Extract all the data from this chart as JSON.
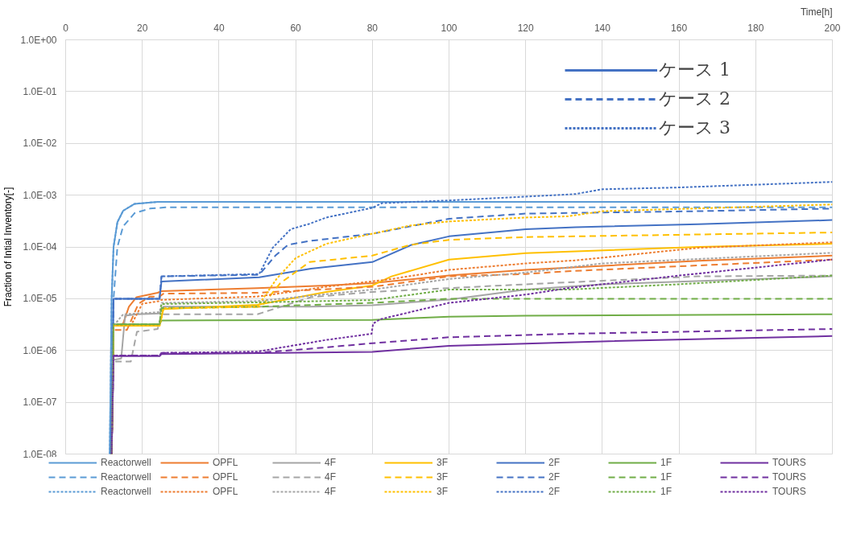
{
  "chart_data": {
    "type": "line",
    "xlabel": "Time[h]",
    "ylabel": "Fraction of Intial Inventory[-]",
    "xlim": [
      0,
      200
    ],
    "xticks": [
      0,
      20,
      40,
      60,
      80,
      100,
      120,
      140,
      160,
      180,
      200
    ],
    "ylim": [
      1e-08,
      1
    ],
    "log": "y",
    "yticks": [
      {
        "value": 1e-08,
        "label": "1.0E-08"
      },
      {
        "value": 1e-07,
        "label": "1.0E-07"
      },
      {
        "value": 1e-06,
        "label": "1.0E-06"
      },
      {
        "value": 1e-05,
        "label": "1.0E-05"
      },
      {
        "value": 0.0001,
        "label": "1.0E-04"
      },
      {
        "value": 0.001,
        "label": "1.0E-03"
      },
      {
        "value": 0.01,
        "label": "1.0E-02"
      },
      {
        "value": 0.1,
        "label": "1.0E-01"
      },
      {
        "value": 1,
        "label": "1.0E+00"
      }
    ],
    "grid": true,
    "legend": "bottom",
    "annotations": [
      "ケース 1",
      "ケース 2",
      "ケース 3"
    ],
    "series": [
      {
        "name": "Reactorwell",
        "color": "#5b9bd5",
        "line_style": "solid",
        "x": [
          11.5,
          12,
          12.5,
          13.5,
          15,
          18,
          24,
          200
        ],
        "values": [
          1e-08,
          1e-05,
          0.0001,
          0.0003,
          0.0005,
          0.00068,
          0.00074,
          0.00074
        ]
      },
      {
        "name": "OPFL",
        "color": "#ed7d31",
        "line_style": "solid",
        "x": [
          12,
          12.5,
          15,
          16.5,
          18.5,
          24,
          25,
          50,
          68,
          80,
          100,
          120,
          165,
          200
        ],
        "values": [
          1e-08,
          3e-06,
          3.3e-06,
          7e-06,
          1.07e-05,
          1.3e-05,
          1.4e-05,
          1.6e-05,
          1.8e-05,
          2e-05,
          2.8e-05,
          3.6e-05,
          5.4e-05,
          6.8e-05
        ]
      },
      {
        "name": "4F",
        "color": "#a5a5a5",
        "line_style": "solid",
        "x": [
          12,
          12.5,
          14.5,
          15.5,
          18.6,
          24.5,
          25.5,
          50,
          64,
          80,
          100,
          120,
          140,
          200
        ],
        "values": [
          1e-08,
          6.6e-07,
          7e-07,
          4.7e-06,
          5e-06,
          5.2e-06,
          7e-06,
          7e-06,
          7e-06,
          7.5e-06,
          9.6e-06,
          1.5e-05,
          1.9e-05,
          2.7e-05
        ]
      },
      {
        "name": "3F",
        "color": "#ffc000",
        "line_style": "solid",
        "x": [
          12,
          12.5,
          24.5,
          25.5,
          50,
          68,
          80,
          85,
          100,
          120,
          165,
          200
        ],
        "values": [
          1e-08,
          3e-06,
          3e-06,
          6.3e-06,
          7.6e-06,
          1.35e-05,
          1.8e-05,
          2.7e-05,
          5.7e-05,
          7.6e-05,
          0.0001,
          0.000115
        ]
      },
      {
        "name": "2F",
        "color": "#4472c4",
        "line_style": "solid",
        "x": [
          11.8,
          12.5,
          24.5,
          25,
          50.5,
          64,
          80,
          90,
          100,
          120,
          133,
          165,
          200
        ],
        "values": [
          1e-08,
          1e-05,
          1e-05,
          2.15e-05,
          2.6e-05,
          3.8e-05,
          5.1e-05,
          0.000108,
          0.00016,
          0.00022,
          0.00024,
          0.000275,
          0.00033
        ]
      },
      {
        "name": "1F",
        "color": "#70ad47",
        "line_style": "solid",
        "x": [
          12,
          12.5,
          24.5,
          25,
          80,
          100,
          120,
          200
        ],
        "values": [
          1e-08,
          3.2e-06,
          3.2e-06,
          3.8e-06,
          3.9e-06,
          4.5e-06,
          4.7e-06,
          5e-06
        ]
      },
      {
        "name": "TOURS",
        "color": "#7030a0",
        "line_style": "solid",
        "x": [
          12,
          12.5,
          24.5,
          25,
          80,
          100,
          120,
          140,
          200
        ],
        "values": [
          1e-08,
          7.8e-07,
          7.8e-07,
          8.5e-07,
          9.4e-07,
          1.23e-06,
          1.35e-06,
          1.5e-06,
          1.9e-06
        ]
      },
      {
        "name": "Reactorwell",
        "color": "#5b9bd5",
        "line_style": "dashed",
        "x": [
          11.7,
          12.5,
          13.5,
          15,
          18,
          22,
          26,
          200
        ],
        "values": [
          1e-08,
          1e-05,
          0.0001,
          0.00025,
          0.00045,
          0.00055,
          0.00058,
          0.00058
        ]
      },
      {
        "name": "OPFL",
        "color": "#ed7d31",
        "line_style": "dashed",
        "x": [
          12,
          12.5,
          16,
          19,
          22,
          24.5,
          25.5,
          50,
          80,
          100,
          120,
          131,
          200
        ],
        "values": [
          1e-08,
          2.5e-06,
          2.5e-06,
          8e-06,
          1.1e-05,
          1.1e-05,
          1.25e-05,
          1.3e-05,
          1.7e-05,
          2.7e-05,
          3e-05,
          3.4e-05,
          5.7e-05
        ]
      },
      {
        "name": "4F",
        "color": "#a5a5a5",
        "line_style": "dashed",
        "x": [
          12,
          12.5,
          17,
          18.6,
          24,
          25,
          50,
          64,
          80,
          100,
          120,
          165,
          200
        ],
        "values": [
          1e-08,
          6.1e-07,
          6.1e-07,
          2.3e-06,
          2.6e-06,
          5e-06,
          5e-06,
          1.07e-05,
          1.35e-05,
          1.6e-05,
          1.9e-05,
          2.7e-05,
          2.8e-05
        ]
      },
      {
        "name": "3F",
        "color": "#ffc000",
        "line_style": "dashed",
        "x": [
          12,
          12.5,
          24.5,
          25.5,
          51,
          56,
          63.6,
          80,
          90,
          100,
          120,
          200
        ],
        "values": [
          1e-08,
          3e-06,
          3e-06,
          6.5e-06,
          7e-06,
          2e-05,
          5.1e-05,
          6.8e-05,
          0.00011,
          0.000137,
          0.000155,
          0.00019
        ]
      },
      {
        "name": "2F",
        "color": "#4472c4",
        "line_style": "dashed",
        "x": [
          11.8,
          12.5,
          24.5,
          25,
          50.5,
          54.7,
          58,
          63.6,
          80,
          100,
          120,
          165,
          200
        ],
        "values": [
          1e-08,
          1e-05,
          1e-05,
          2.7e-05,
          2.9e-05,
          6.8e-05,
          0.00011,
          0.00013,
          0.00018,
          0.00035,
          0.00044,
          0.00049,
          0.00055
        ]
      },
      {
        "name": "1F",
        "color": "#70ad47",
        "line_style": "dashed",
        "x": [
          12,
          12.5,
          24.5,
          25,
          50,
          80,
          100,
          200
        ],
        "values": [
          1e-08,
          3.2e-06,
          3.2e-06,
          6.6e-06,
          7e-06,
          8.3e-06,
          1e-05,
          1e-05
        ]
      },
      {
        "name": "TOURS",
        "color": "#7030a0",
        "line_style": "dashed",
        "x": [
          12,
          12.5,
          24.5,
          25,
          50,
          65,
          80,
          100,
          131,
          200
        ],
        "values": [
          1e-08,
          8e-07,
          8e-07,
          9e-07,
          9e-07,
          1.1e-06,
          1.38e-06,
          1.8e-06,
          2.1e-06,
          2.6e-06
        ]
      },
      {
        "name": "Reactorwell",
        "color": "#5b9bd5",
        "line_style": "dotted",
        "x": [
          11.5,
          12,
          12.5,
          13.5,
          15,
          18,
          24,
          200
        ],
        "values": [
          1e-08,
          1e-05,
          0.0001,
          0.0003,
          0.0005,
          0.00068,
          0.00074,
          0.00074
        ]
      },
      {
        "name": "OPFL",
        "color": "#ed7d31",
        "line_style": "dotted",
        "x": [
          12,
          12.5,
          17,
          20,
          24.5,
          25,
          50,
          68,
          85,
          100,
          120,
          133,
          165,
          200
        ],
        "values": [
          1e-08,
          3e-06,
          3e-06,
          8e-06,
          9e-06,
          9.5e-06,
          1.1e-05,
          1.7e-05,
          2.4e-05,
          3.6e-05,
          4.8e-05,
          5.5e-05,
          9.6e-05,
          0.000123
        ]
      },
      {
        "name": "4F",
        "color": "#a5a5a5",
        "line_style": "dotted",
        "x": [
          12,
          12.5,
          15,
          24.5,
          25,
          50,
          80,
          100,
          120,
          140,
          200
        ],
        "values": [
          1e-08,
          3e-06,
          5e-06,
          5.5e-06,
          8.3e-06,
          9e-06,
          1.5e-05,
          2.4e-05,
          3.2e-05,
          4.8e-05,
          7.7e-05
        ]
      },
      {
        "name": "3F",
        "color": "#ffc000",
        "line_style": "dotted",
        "x": [
          12,
          12.5,
          24.5,
          25.5,
          50,
          55,
          60,
          68,
          80,
          90,
          100,
          120,
          131,
          140,
          200
        ],
        "values": [
          1e-08,
          3e-06,
          3e-06,
          6.5e-06,
          7e-06,
          2.4e-05,
          6.1e-05,
          0.000115,
          0.00018,
          0.00026,
          0.00031,
          0.00037,
          0.00039,
          0.00049,
          0.00066
        ]
      },
      {
        "name": "2F",
        "color": "#4472c4",
        "line_style": "dotted",
        "x": [
          11.8,
          12.5,
          24.5,
          25,
          50.5,
          54,
          58.7,
          63.6,
          68,
          80,
          82.5,
          100,
          133,
          140,
          159,
          200
        ],
        "values": [
          1e-08,
          1e-05,
          1e-05,
          2.7e-05,
          3e-05,
          9.6e-05,
          0.00022,
          0.00028,
          0.00037,
          0.00057,
          0.0007,
          0.00079,
          0.00105,
          0.0013,
          0.0014,
          0.0018
        ]
      },
      {
        "name": "1F",
        "color": "#70ad47",
        "line_style": "dotted",
        "x": [
          12,
          12.5,
          24.5,
          25,
          50,
          80,
          100,
          131,
          160,
          200
        ],
        "values": [
          1e-08,
          3.2e-06,
          3.2e-06,
          7.9e-06,
          8.5e-06,
          9.4e-06,
          1.5e-05,
          1.5e-05,
          1.9e-05,
          2.8e-05
        ]
      },
      {
        "name": "TOURS",
        "color": "#7030a0",
        "line_style": "dotted",
        "x": [
          12,
          12.5,
          24.5,
          25,
          50,
          68,
          79.8,
          80.2,
          82,
          100,
          120,
          131,
          160,
          200
        ],
        "values": [
          1e-08,
          8e-07,
          8e-07,
          9e-07,
          9.5e-07,
          1.6e-06,
          2.1e-06,
          3.3e-06,
          4e-06,
          8.3e-06,
          1.2e-05,
          1.6e-05,
          2.8e-05,
          5.7e-05
        ]
      }
    ]
  }
}
